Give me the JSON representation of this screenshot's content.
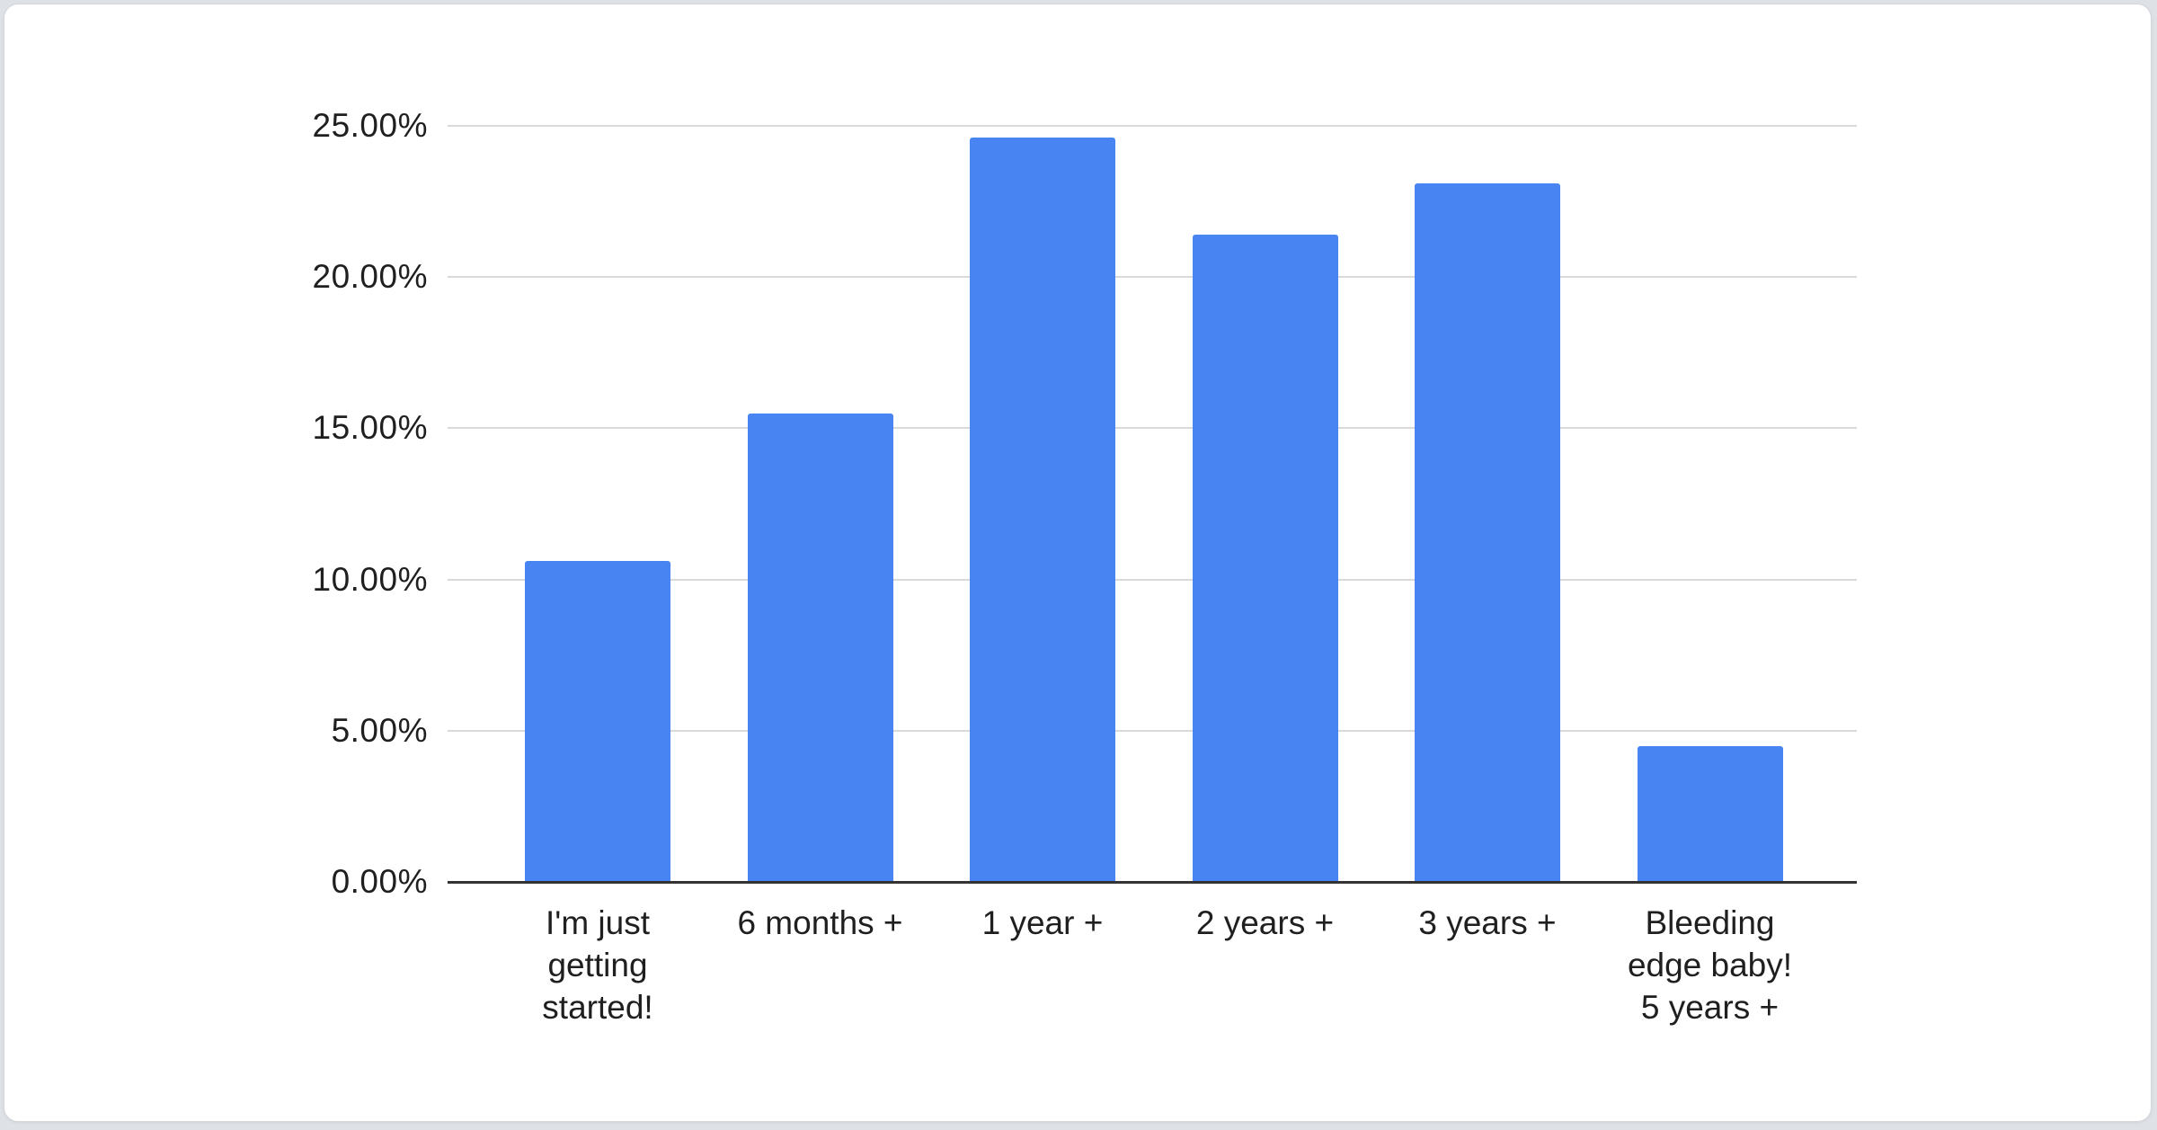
{
  "page": {
    "background_color": "#dee1e5",
    "card": {
      "background_color": "#ffffff",
      "border_color": "#d4d7db"
    }
  },
  "chart_data": {
    "type": "bar",
    "title": "",
    "xlabel": "",
    "ylabel": "",
    "categories": [
      "I'm just\ngetting\nstarted!",
      "6 months +",
      "1 year +",
      "2 years +",
      "3 years +",
      "Bleeding\nedge baby!\n5 years +"
    ],
    "values": [
      10.6,
      15.5,
      24.6,
      21.4,
      23.1,
      4.5
    ],
    "value_unit": "percent",
    "ylim": [
      0,
      25
    ],
    "ytick_step": 5,
    "ytick_labels": [
      "0.00%",
      "5.00%",
      "10.00%",
      "15.00%",
      "20.00%",
      "25.00%"
    ],
    "grid": true,
    "legend_position": "none",
    "colors": {
      "bar": "#4885f3",
      "gridline": "#d9d9d9",
      "axis_line": "#333333",
      "tick_label": "#1f1f1f"
    }
  }
}
